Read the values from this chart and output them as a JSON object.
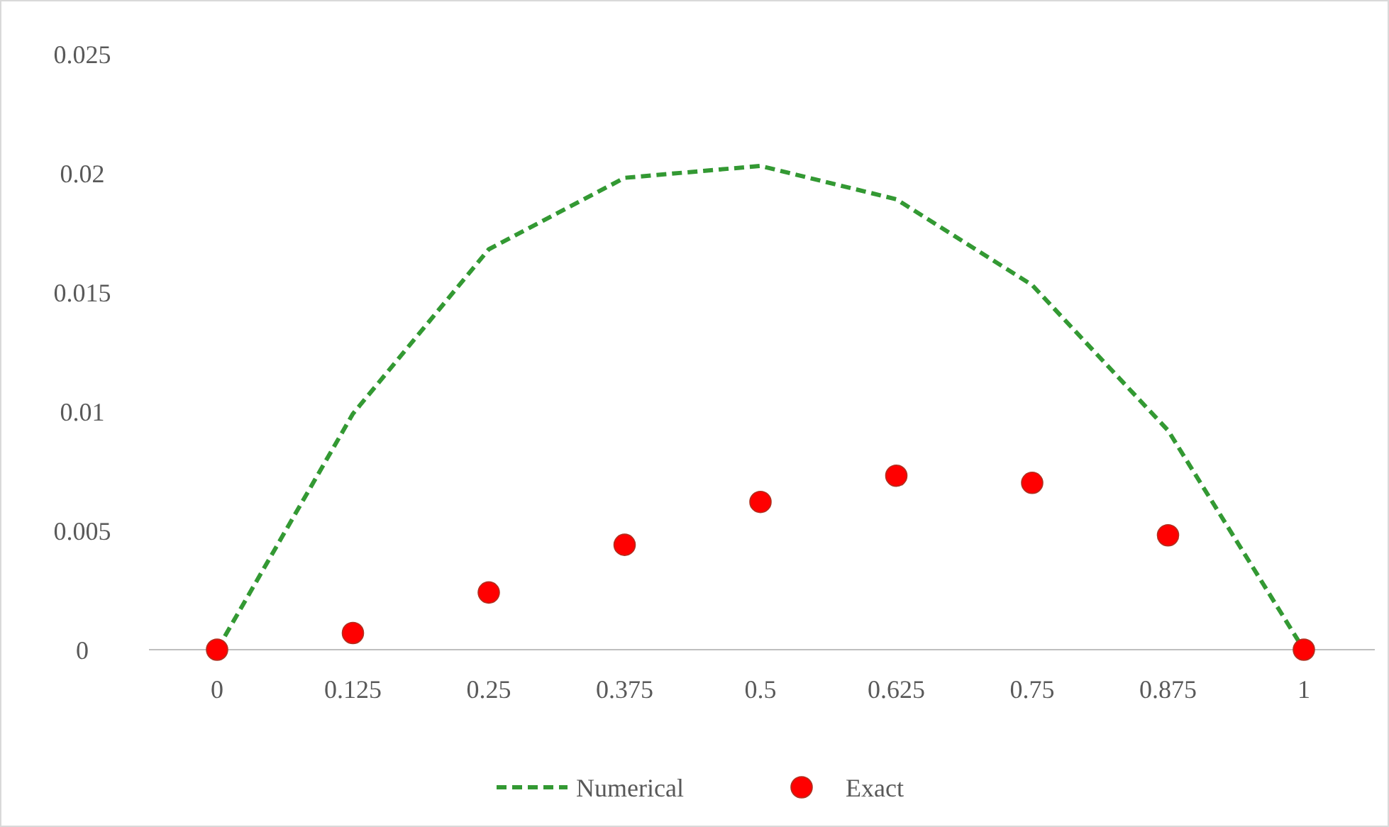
{
  "chart_data": {
    "type": "line",
    "categories": [
      "0",
      "0.125",
      "0.25",
      "0.375",
      "0.5",
      "0.625",
      "0.75",
      "0.875",
      "1"
    ],
    "series": [
      {
        "name": "Numerical",
        "color": "#339933",
        "line_style": "dashed",
        "marker": "none",
        "values": [
          0,
          0.0099,
          0.0168,
          0.0198,
          0.0203,
          0.0189,
          0.0153,
          0.0092,
          0
        ]
      },
      {
        "name": "Exact",
        "type": "scatter",
        "color": "#ff0000",
        "marker": "circle",
        "values": [
          0,
          0.0007,
          0.0024,
          0.0044,
          0.0062,
          0.0073,
          0.007,
          0.0048,
          0
        ]
      }
    ],
    "ylim": [
      0,
      0.025
    ],
    "yticks": [
      0,
      0.005,
      0.01,
      0.015,
      0.02,
      0.025
    ],
    "grid": false,
    "legend": "bottom"
  }
}
